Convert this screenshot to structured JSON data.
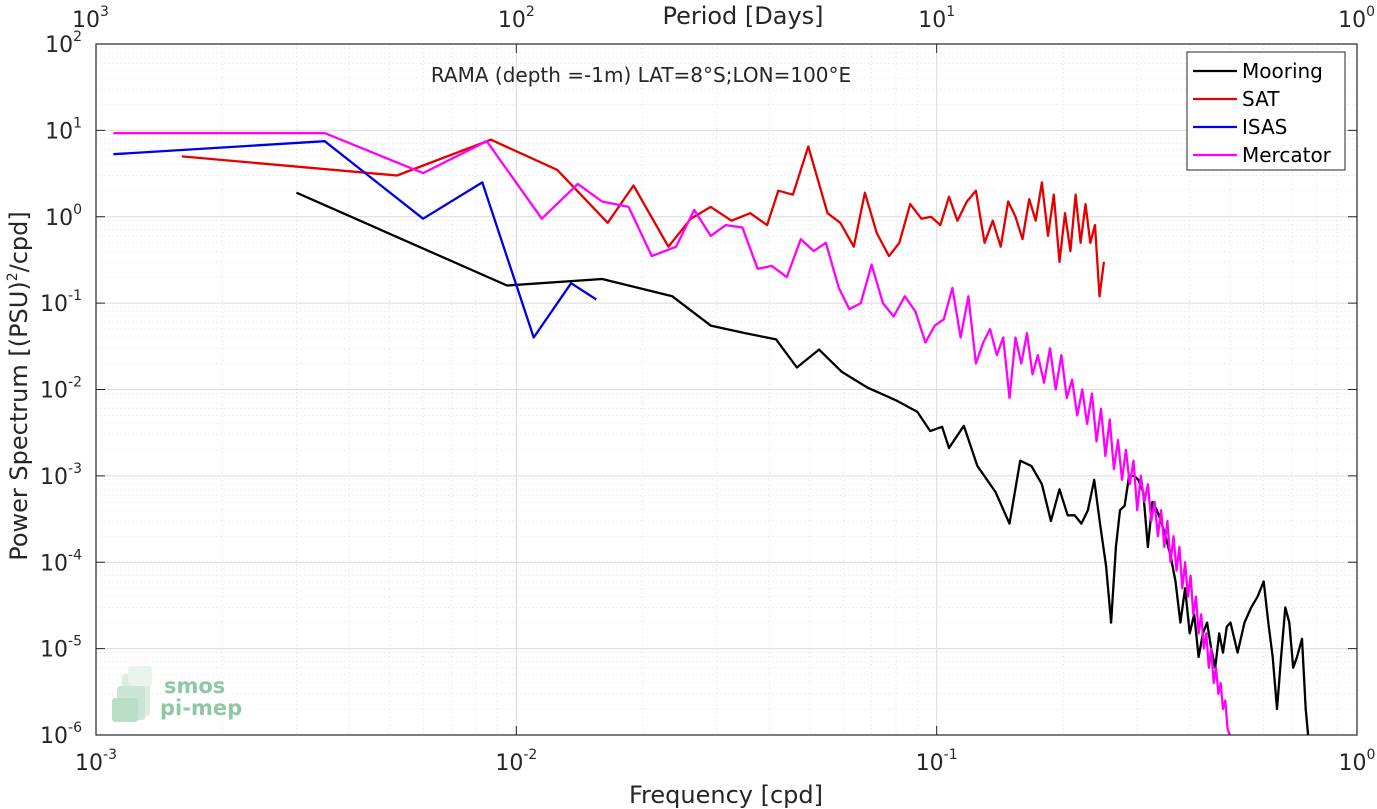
{
  "chart_data": {
    "type": "line",
    "annotation": "RAMA (depth =-1m) LAT=8°S;LON=100°E",
    "xlabel": "Frequency [cpd]",
    "ylabel": "Power Spectrum [(PSU)",
    "ylabel_sup": "2",
    "ylabel_tail": "/cpd]",
    "top_xlabel": "Period [Days]",
    "xscale": "log",
    "yscale": "log",
    "xlim": [
      0.001,
      1
    ],
    "ylim": [
      1e-06,
      100
    ],
    "grid": true,
    "legend_position": "top-right",
    "x_ticks": [
      {
        "value": 0.001,
        "base": "10",
        "exp": "-3"
      },
      {
        "value": 0.01,
        "base": "10",
        "exp": "-2"
      },
      {
        "value": 0.1,
        "base": "10",
        "exp": "-1"
      },
      {
        "value": 1,
        "base": "10",
        "exp": "0"
      }
    ],
    "y_ticks": [
      {
        "value": 1e-06,
        "base": "10",
        "exp": "-6"
      },
      {
        "value": 1e-05,
        "base": "10",
        "exp": "-5"
      },
      {
        "value": 0.0001,
        "base": "10",
        "exp": "-4"
      },
      {
        "value": 0.001,
        "base": "10",
        "exp": "-3"
      },
      {
        "value": 0.01,
        "base": "10",
        "exp": "-2"
      },
      {
        "value": 0.1,
        "base": "10",
        "exp": "-1"
      },
      {
        "value": 1,
        "base": "10",
        "exp": "0"
      },
      {
        "value": 10,
        "base": "10",
        "exp": "1"
      },
      {
        "value": 100,
        "base": "10",
        "exp": "2"
      }
    ],
    "top_ticks": [
      {
        "period": 1000,
        "base": "10",
        "exp": "3"
      },
      {
        "period": 100,
        "base": "10",
        "exp": "2"
      },
      {
        "period": 10,
        "base": "10",
        "exp": "1"
      },
      {
        "period": 1,
        "base": "10",
        "exp": "0"
      }
    ],
    "series": [
      {
        "name": "Mooring",
        "color": "#000000",
        "points": [
          [
            0.003,
            1.9
          ],
          [
            0.0095,
            0.16
          ],
          [
            0.016,
            0.19
          ],
          [
            0.0235,
            0.12
          ],
          [
            0.029,
            0.055
          ],
          [
            0.035,
            0.045
          ],
          [
            0.0415,
            0.038
          ],
          [
            0.0465,
            0.018
          ],
          [
            0.0525,
            0.029
          ],
          [
            0.0595,
            0.016
          ],
          [
            0.0685,
            0.0105
          ],
          [
            0.08,
            0.0075
          ],
          [
            0.09,
            0.0055
          ],
          [
            0.0965,
            0.0033
          ],
          [
            0.103,
            0.0037
          ],
          [
            0.107,
            0.0021
          ],
          [
            0.116,
            0.0038
          ],
          [
            0.125,
            0.0013
          ],
          [
            0.138,
            0.00065
          ],
          [
            0.149,
            0.00028
          ],
          [
            0.158,
            0.0015
          ],
          [
            0.168,
            0.0013
          ],
          [
            0.178,
            0.0008
          ],
          [
            0.187,
            0.0003
          ],
          [
            0.196,
            0.0007
          ],
          [
            0.205,
            0.00035
          ],
          [
            0.213,
            0.00035
          ],
          [
            0.221,
            0.00028
          ],
          [
            0.229,
            0.0004
          ],
          [
            0.237,
            0.0009
          ],
          [
            0.245,
            0.00027
          ],
          [
            0.253,
            9e-05
          ],
          [
            0.26,
            2e-05
          ],
          [
            0.267,
            0.00015
          ],
          [
            0.273,
            0.0004
          ],
          [
            0.28,
            0.00045
          ],
          [
            0.287,
            0.001
          ],
          [
            0.295,
            0.001
          ],
          [
            0.302,
            0.0009
          ],
          [
            0.31,
            0.00065
          ],
          [
            0.318,
            0.00015
          ],
          [
            0.326,
            0.0005
          ],
          [
            0.334,
            0.0004
          ],
          [
            0.342,
            0.0003
          ],
          [
            0.35,
            0.0002
          ],
          [
            0.36,
            0.00012
          ],
          [
            0.37,
            6e-05
          ],
          [
            0.38,
            2e-05
          ],
          [
            0.39,
            5e-05
          ],
          [
            0.4,
            1.5e-05
          ],
          [
            0.41,
            2.5e-05
          ],
          [
            0.42,
            8e-06
          ],
          [
            0.43,
            1.5e-05
          ],
          [
            0.44,
            2e-05
          ],
          [
            0.45,
            1e-05
          ],
          [
            0.46,
            6e-06
          ],
          [
            0.47,
            1.5e-05
          ],
          [
            0.48,
            9e-06
          ],
          [
            0.49,
            1.8e-05
          ],
          [
            0.5,
            2e-05
          ],
          [
            0.52,
            9e-06
          ],
          [
            0.54,
            2e-05
          ],
          [
            0.56,
            3e-05
          ],
          [
            0.58,
            4e-05
          ],
          [
            0.6,
            6e-05
          ],
          [
            0.615,
            2e-05
          ],
          [
            0.63,
            8e-06
          ],
          [
            0.645,
            2e-06
          ],
          [
            0.66,
            8e-06
          ],
          [
            0.675,
            3e-05
          ],
          [
            0.69,
            2e-05
          ],
          [
            0.705,
            6e-06
          ],
          [
            0.72,
            8e-06
          ],
          [
            0.74,
            1.3e-05
          ],
          [
            0.755,
            2e-06
          ],
          [
            0.765,
            1e-06
          ]
        ]
      },
      {
        "name": "SAT",
        "color": "#e50000",
        "points": [
          [
            0.0016,
            5.0
          ],
          [
            0.0052,
            3.0
          ],
          [
            0.0087,
            7.8
          ],
          [
            0.0125,
            3.5
          ],
          [
            0.0165,
            0.85
          ],
          [
            0.019,
            2.3
          ],
          [
            0.023,
            0.45
          ],
          [
            0.026,
            0.95
          ],
          [
            0.029,
            1.3
          ],
          [
            0.0325,
            0.9
          ],
          [
            0.036,
            1.1
          ],
          [
            0.0395,
            0.8
          ],
          [
            0.042,
            2.0
          ],
          [
            0.0455,
            1.8
          ],
          [
            0.0495,
            6.5
          ],
          [
            0.055,
            1.1
          ],
          [
            0.059,
            0.85
          ],
          [
            0.0635,
            0.45
          ],
          [
            0.0675,
            1.9
          ],
          [
            0.072,
            0.65
          ],
          [
            0.077,
            0.35
          ],
          [
            0.0815,
            0.5
          ],
          [
            0.0865,
            1.4
          ],
          [
            0.092,
            0.95
          ],
          [
            0.097,
            1.0
          ],
          [
            0.102,
            0.8
          ],
          [
            0.107,
            1.7
          ],
          [
            0.112,
            0.9
          ],
          [
            0.118,
            1.5
          ],
          [
            0.124,
            2.0
          ],
          [
            0.13,
            0.5
          ],
          [
            0.136,
            0.9
          ],
          [
            0.142,
            0.45
          ],
          [
            0.148,
            1.5
          ],
          [
            0.154,
            1.0
          ],
          [
            0.16,
            0.55
          ],
          [
            0.166,
            1.6
          ],
          [
            0.172,
            0.9
          ],
          [
            0.178,
            2.5
          ],
          [
            0.184,
            0.6
          ],
          [
            0.19,
            1.8
          ],
          [
            0.196,
            0.3
          ],
          [
            0.202,
            1.1
          ],
          [
            0.208,
            0.4
          ],
          [
            0.214,
            1.8
          ],
          [
            0.22,
            0.5
          ],
          [
            0.226,
            1.4
          ],
          [
            0.232,
            0.5
          ],
          [
            0.238,
            0.8
          ],
          [
            0.244,
            0.12
          ],
          [
            0.25,
            0.3
          ]
        ]
      },
      {
        "name": "ISAS",
        "color": "#0000e5",
        "points": [
          [
            0.0011,
            5.3
          ],
          [
            0.0035,
            7.5
          ],
          [
            0.006,
            0.95
          ],
          [
            0.0083,
            2.5
          ],
          [
            0.011,
            0.04
          ],
          [
            0.0135,
            0.17
          ],
          [
            0.0155,
            0.11
          ]
        ]
      },
      {
        "name": "Mercator",
        "color": "#ff00ff",
        "points": [
          [
            0.0011,
            9.3
          ],
          [
            0.0035,
            9.3
          ],
          [
            0.006,
            3.2
          ],
          [
            0.0085,
            7.5
          ],
          [
            0.0115,
            0.95
          ],
          [
            0.014,
            2.4
          ],
          [
            0.016,
            1.5
          ],
          [
            0.0185,
            1.3
          ],
          [
            0.021,
            0.35
          ],
          [
            0.024,
            0.45
          ],
          [
            0.0265,
            1.2
          ],
          [
            0.029,
            0.6
          ],
          [
            0.0315,
            0.8
          ],
          [
            0.0345,
            0.75
          ],
          [
            0.0375,
            0.25
          ],
          [
            0.0405,
            0.27
          ],
          [
            0.044,
            0.2
          ],
          [
            0.0475,
            0.55
          ],
          [
            0.051,
            0.4
          ],
          [
            0.0545,
            0.5
          ],
          [
            0.0585,
            0.15
          ],
          [
            0.062,
            0.085
          ],
          [
            0.066,
            0.1
          ],
          [
            0.07,
            0.28
          ],
          [
            0.0745,
            0.1
          ],
          [
            0.079,
            0.07
          ],
          [
            0.084,
            0.12
          ],
          [
            0.089,
            0.08
          ],
          [
            0.094,
            0.035
          ],
          [
            0.099,
            0.055
          ],
          [
            0.104,
            0.065
          ],
          [
            0.109,
            0.15
          ],
          [
            0.114,
            0.04
          ],
          [
            0.119,
            0.12
          ],
          [
            0.124,
            0.02
          ],
          [
            0.129,
            0.035
          ],
          [
            0.134,
            0.05
          ],
          [
            0.139,
            0.025
          ],
          [
            0.144,
            0.04
          ],
          [
            0.149,
            0.008
          ],
          [
            0.154,
            0.04
          ],
          [
            0.159,
            0.02
          ],
          [
            0.164,
            0.045
          ],
          [
            0.169,
            0.015
          ],
          [
            0.174,
            0.025
          ],
          [
            0.18,
            0.012
          ],
          [
            0.186,
            0.03
          ],
          [
            0.192,
            0.01
          ],
          [
            0.198,
            0.025
          ],
          [
            0.204,
            0.008
          ],
          [
            0.21,
            0.013
          ],
          [
            0.216,
            0.005
          ],
          [
            0.222,
            0.01
          ],
          [
            0.228,
            0.004
          ],
          [
            0.234,
            0.009
          ],
          [
            0.24,
            0.0025
          ],
          [
            0.246,
            0.006
          ],
          [
            0.252,
            0.0017
          ],
          [
            0.258,
            0.0045
          ],
          [
            0.264,
            0.0012
          ],
          [
            0.27,
            0.0026
          ],
          [
            0.276,
            0.0009
          ],
          [
            0.282,
            0.002
          ],
          [
            0.288,
            0.0008
          ],
          [
            0.294,
            0.0015
          ],
          [
            0.3,
            0.0004
          ],
          [
            0.306,
            0.001
          ],
          [
            0.312,
            0.0005
          ],
          [
            0.318,
            0.0008
          ],
          [
            0.324,
            0.0003
          ],
          [
            0.33,
            0.0005
          ],
          [
            0.336,
            0.0002
          ],
          [
            0.342,
            0.0004
          ],
          [
            0.348,
            0.00015
          ],
          [
            0.354,
            0.0003
          ],
          [
            0.36,
            0.0001
          ],
          [
            0.366,
            0.0002
          ],
          [
            0.372,
            8e-05
          ],
          [
            0.378,
            0.00015
          ],
          [
            0.384,
            5e-05
          ],
          [
            0.39,
            0.0001
          ],
          [
            0.396,
            4e-05
          ],
          [
            0.402,
            7e-05
          ],
          [
            0.408,
            2.5e-05
          ],
          [
            0.414,
            4e-05
          ],
          [
            0.42,
            1.5e-05
          ],
          [
            0.426,
            2.5e-05
          ],
          [
            0.432,
            1e-05
          ],
          [
            0.438,
            1.5e-05
          ],
          [
            0.444,
            6e-06
          ],
          [
            0.45,
            1e-05
          ],
          [
            0.456,
            4e-06
          ],
          [
            0.462,
            6e-06
          ],
          [
            0.468,
            3e-06
          ],
          [
            0.474,
            4e-06
          ],
          [
            0.48,
            2e-06
          ],
          [
            0.486,
            2.5e-06
          ],
          [
            0.492,
            1.2e-06
          ],
          [
            0.498,
            1e-06
          ]
        ]
      }
    ]
  },
  "logo": {
    "line1": "smos",
    "line2": "pi-mep"
  }
}
